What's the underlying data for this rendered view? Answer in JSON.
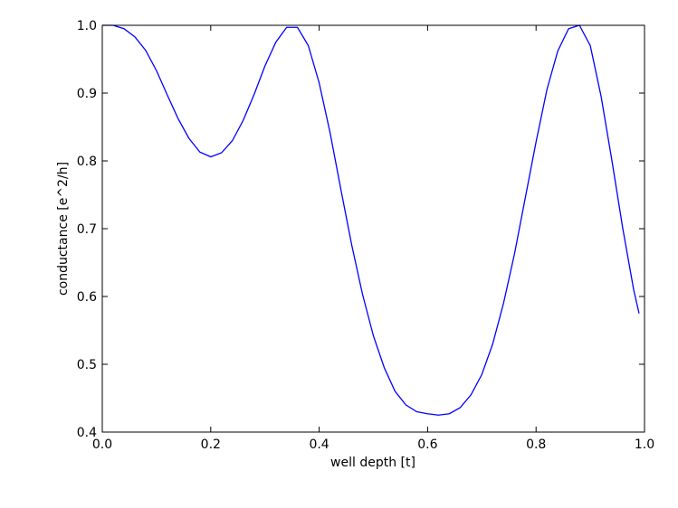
{
  "chart_data": {
    "type": "line",
    "x_label": "well depth [t]",
    "y_label": "conductance [e^2/h]",
    "x": [
      0,
      0.02,
      0.04,
      0.06,
      0.08,
      0.1,
      0.12,
      0.14,
      0.16,
      0.18,
      0.2,
      0.22,
      0.24,
      0.26,
      0.28,
      0.3,
      0.32,
      0.34,
      0.36,
      0.38,
      0.4,
      0.42,
      0.44,
      0.46,
      0.48,
      0.5,
      0.52,
      0.54,
      0.56,
      0.58,
      0.6,
      0.62,
      0.64,
      0.66,
      0.68,
      0.7,
      0.72,
      0.74,
      0.76,
      0.78,
      0.8,
      0.82,
      0.84,
      0.86,
      0.88,
      0.9,
      0.92,
      0.94,
      0.96,
      0.98,
      0.99
    ],
    "values": [
      1.0,
      1.0,
      0.995,
      0.983,
      0.963,
      0.933,
      0.897,
      0.862,
      0.833,
      0.813,
      0.806,
      0.812,
      0.83,
      0.86,
      0.898,
      0.94,
      0.975,
      0.997,
      0.997,
      0.97,
      0.915,
      0.842,
      0.758,
      0.676,
      0.603,
      0.542,
      0.495,
      0.46,
      0.44,
      0.43,
      0.427,
      0.425,
      0.427,
      0.436,
      0.455,
      0.485,
      0.53,
      0.59,
      0.662,
      0.745,
      0.828,
      0.905,
      0.962,
      0.995,
      1.0,
      0.97,
      0.895,
      0.8,
      0.7,
      0.61,
      0.575
    ],
    "color": "#0000ff",
    "xlim": [
      0,
      1
    ],
    "ylim": [
      0.4,
      1
    ],
    "xticks": [
      {
        "value": 0,
        "label": "0.0"
      },
      0.2,
      0.4,
      0.6,
      0.8,
      {
        "value": 1,
        "label": "1.0"
      }
    ],
    "yticks": [
      0.4,
      0.5,
      0.6,
      0.7,
      0.8,
      0.9,
      {
        "value": 1,
        "label": "1.0"
      }
    ],
    "grid": false
  }
}
